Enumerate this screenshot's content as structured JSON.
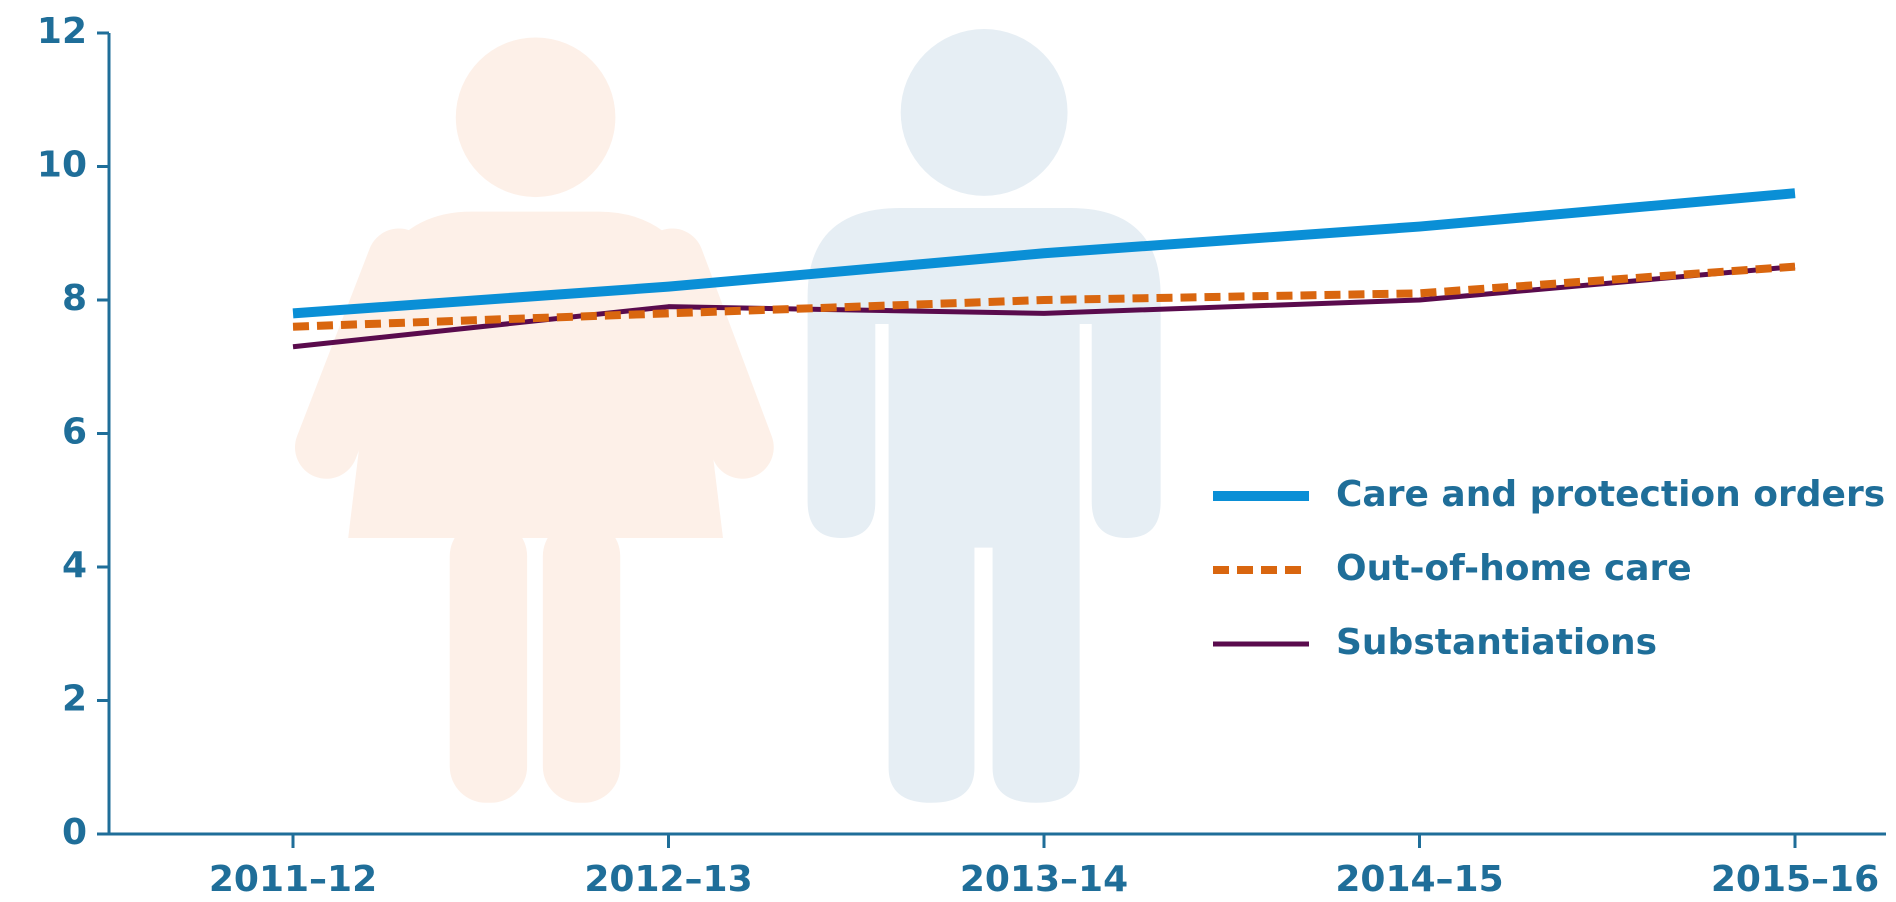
{
  "chart_data": {
    "type": "line",
    "categories": [
      "2011–12",
      "2012–13",
      "2013–14",
      "2014–15",
      "2015–16"
    ],
    "series": [
      {
        "name": "Care and protection orders",
        "color": "#0a8fd6",
        "line_style": "solid",
        "values": [
          7.8,
          8.2,
          8.7,
          9.1,
          9.6
        ]
      },
      {
        "name": "Out-of-home care",
        "color": "#d9660f",
        "line_style": "dashed",
        "values": [
          7.6,
          7.8,
          8.0,
          8.1,
          8.5
        ]
      },
      {
        "name": "Substantiations",
        "color": "#5a0b4d",
        "line_style": "solid",
        "values": [
          7.3,
          7.9,
          7.8,
          8.0,
          8.5
        ]
      }
    ],
    "ylim": [
      0,
      12
    ],
    "yticks": [
      0,
      2,
      4,
      6,
      8,
      10,
      12
    ],
    "grid": false,
    "legend": "right"
  }
}
